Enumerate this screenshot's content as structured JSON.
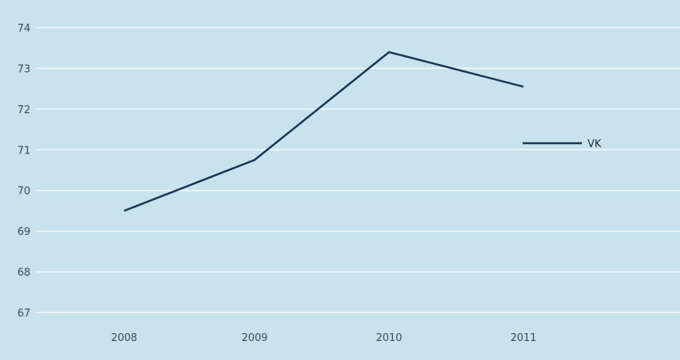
{
  "chart_data": {
    "type": "line",
    "title": "",
    "xlabel": "",
    "ylabel": "",
    "x": [
      "2008",
      "2009",
      "2010",
      "2011"
    ],
    "yticks": [
      "74",
      "73",
      "72",
      "71",
      "70",
      "69",
      "68",
      "67"
    ],
    "ylim": [
      67,
      74
    ],
    "grid": true,
    "legend_position": "right",
    "series": [
      {
        "name": "VK",
        "values": [
          69.5,
          70.75,
          73.4,
          72.55
        ]
      }
    ],
    "colors": {
      "background": "#c9e2ee",
      "gridline": "#f4fafd",
      "line": "#1c3550",
      "text": "#3a4a55"
    }
  }
}
